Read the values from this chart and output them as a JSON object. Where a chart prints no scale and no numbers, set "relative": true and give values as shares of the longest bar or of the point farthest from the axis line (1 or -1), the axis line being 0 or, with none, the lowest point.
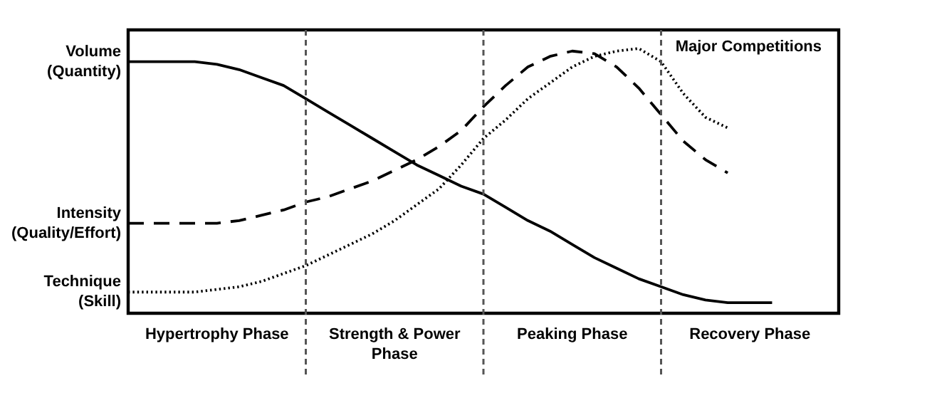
{
  "chart_data": {
    "type": "line",
    "relative": true,
    "categories": [
      null,
      null,
      null,
      null,
      "Hypertrophy Phase",
      null,
      null,
      null,
      null,
      null,
      null,
      null,
      "Strength & Power Phase",
      null,
      null,
      null,
      null,
      null,
      null,
      null,
      "Peaking Phase",
      null,
      null,
      null,
      null,
      null,
      null,
      null,
      "Recovery Phase",
      null,
      null,
      null,
      null
    ],
    "series": [
      {
        "name": "Volume (Quantity)",
        "color": "#000000",
        "line_style": "solid",
        "values": [
          0.95,
          0.95,
          0.95,
          0.95,
          0.94,
          0.92,
          0.89,
          0.86,
          0.81,
          0.76,
          0.71,
          0.66,
          0.61,
          0.56,
          0.52,
          0.48,
          0.45,
          0.4,
          0.35,
          0.31,
          0.26,
          0.21,
          0.17,
          0.13,
          0.1,
          0.07,
          0.05,
          0.04,
          0.04,
          0.04,
          null,
          null,
          null
        ]
      },
      {
        "name": "Intensity (Quality/Effort)",
        "color": "#000000",
        "line_style": "dashed",
        "values": [
          0.34,
          0.34,
          0.34,
          0.34,
          0.34,
          0.35,
          0.37,
          0.39,
          0.42,
          0.44,
          0.47,
          0.5,
          0.54,
          0.58,
          0.63,
          0.69,
          0.78,
          0.86,
          0.93,
          0.97,
          0.99,
          0.98,
          0.93,
          0.85,
          0.75,
          0.65,
          0.58,
          0.53,
          null,
          null,
          null,
          null,
          null
        ]
      },
      {
        "name": "Technique (Skill)",
        "color": "#000000",
        "line_style": "dotted",
        "values": [
          0.08,
          0.08,
          0.08,
          0.08,
          0.09,
          0.1,
          0.12,
          0.15,
          0.18,
          0.22,
          0.26,
          0.3,
          0.35,
          0.41,
          0.47,
          0.56,
          0.66,
          0.73,
          0.81,
          0.87,
          0.93,
          0.97,
          0.99,
          1.0,
          0.95,
          0.83,
          0.74,
          0.7,
          null,
          null,
          null,
          null,
          null
        ]
      }
    ],
    "grid": "x",
    "annotations": [
      "Major Competitions"
    ]
  }
}
